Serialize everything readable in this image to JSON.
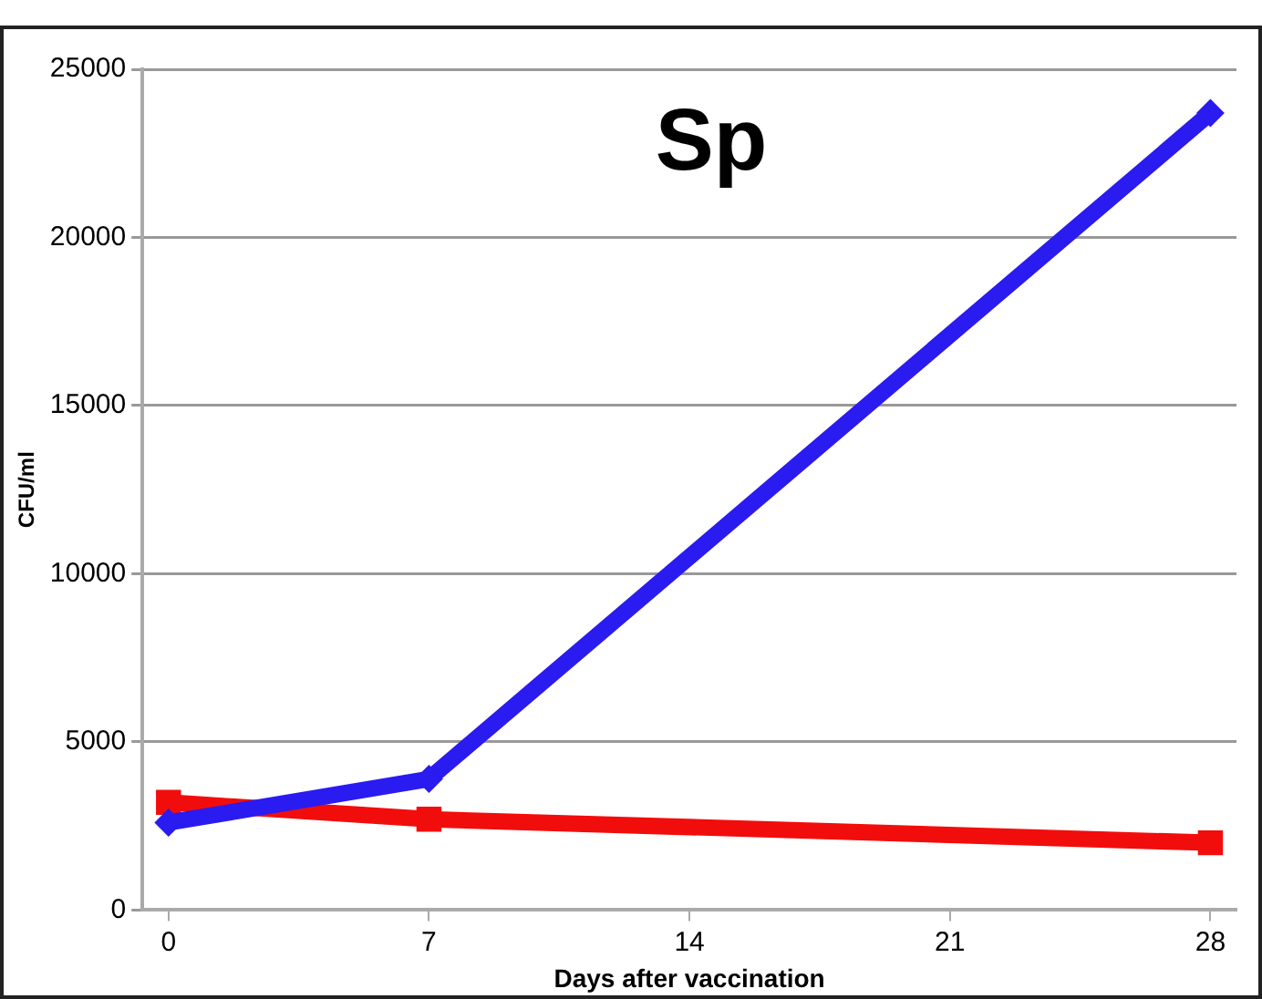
{
  "chart_data": {
    "type": "line",
    "title": "Sp",
    "xlabel": "Days after vaccination",
    "ylabel": "CFU/ml",
    "x": [
      0,
      7,
      28
    ],
    "series": [
      {
        "color": "#2a1bf0",
        "values": [
          2600,
          3900,
          23700
        ],
        "marker": "diamond"
      },
      {
        "color": "#f20d0d",
        "values": [
          3200,
          2700,
          2000
        ],
        "marker": "square"
      }
    ],
    "xlim": [
      -0.7,
      28.7
    ],
    "xticks": [
      0,
      7,
      14,
      21,
      28
    ],
    "ylim": [
      0,
      25000
    ],
    "yticks": [
      0,
      5000,
      10000,
      15000,
      20000,
      25000
    ],
    "grid": "y",
    "legend": false
  }
}
